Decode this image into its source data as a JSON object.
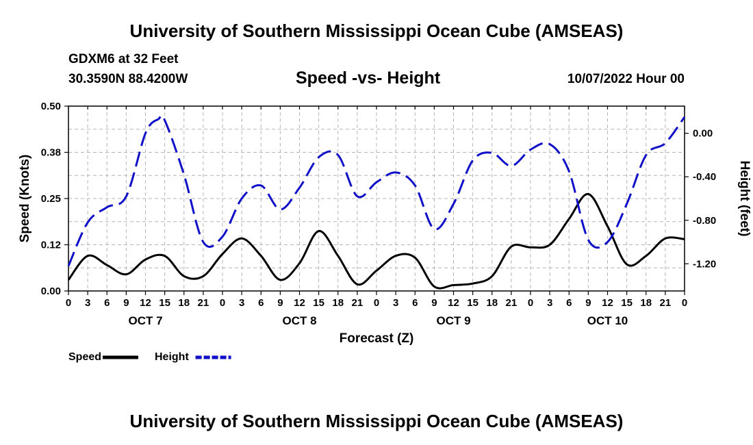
{
  "header": {
    "title": "University of Southern Mississippi Ocean Cube (AMSEAS)",
    "station": "GDXM6 at 32 Feet",
    "coords": "30.3590N  88.4200W",
    "subtitle": "Speed -vs- Height",
    "datetime": "10/07/2022 Hour 00"
  },
  "footer": {
    "title": "University of Southern Mississippi Ocean Cube (AMSEAS)"
  },
  "chart_data": {
    "type": "line",
    "title": "Speed -vs- Height",
    "xlabel": "Forecast (Z)",
    "ylabel": "Speed (Knots)",
    "y2label": "Height (feet)",
    "xlim": [
      0,
      96
    ],
    "ylim": [
      0,
      0.5
    ],
    "y2lim": [
      -1.45,
      0.25
    ],
    "yticks": [
      0,
      0.125,
      0.25,
      0.375,
      0.5
    ],
    "ytick_labels": [
      "0.00",
      "0.12",
      "0.25",
      "0.38",
      "0.50"
    ],
    "y2ticks": [
      -1.2,
      -0.8,
      -0.4,
      0.0
    ],
    "y2tick_labels": [
      "-1.20",
      "-0.80",
      "-0.40",
      "0.00"
    ],
    "xtick_labels": [
      "0",
      "3",
      "6",
      "9",
      "12",
      "15",
      "18",
      "21",
      "0",
      "3",
      "6",
      "9",
      "12",
      "15",
      "18",
      "21",
      "0",
      "3",
      "6",
      "9",
      "12",
      "15",
      "18",
      "21",
      "0",
      "3",
      "6",
      "9",
      "12",
      "15",
      "18",
      "21",
      "0"
    ],
    "day_labels": [
      {
        "label": "OCT 7",
        "hour": 12
      },
      {
        "label": "OCT 8",
        "hour": 36
      },
      {
        "label": "OCT 9",
        "hour": 60
      },
      {
        "label": "OCT 10",
        "hour": 84
      }
    ],
    "grid": true,
    "legend_position": "bottom-left",
    "series": [
      {
        "name": "Speed",
        "axis": "left",
        "color": "#000000",
        "dash": false,
        "x": [
          0,
          3,
          6,
          9,
          12,
          15,
          18,
          21,
          24,
          27,
          30,
          33,
          36,
          39,
          42,
          45,
          48,
          51,
          54,
          57,
          60,
          63,
          66,
          69,
          72,
          75,
          78,
          81,
          84,
          87,
          90,
          93,
          96
        ],
        "values": [
          0.03,
          0.095,
          0.07,
          0.045,
          0.085,
          0.095,
          0.04,
          0.04,
          0.1,
          0.142,
          0.095,
          0.03,
          0.075,
          0.162,
          0.095,
          0.018,
          0.055,
          0.095,
          0.09,
          0.012,
          0.016,
          0.02,
          0.04,
          0.12,
          0.118,
          0.125,
          0.195,
          0.262,
          0.175,
          0.072,
          0.095,
          0.142,
          0.14
        ]
      },
      {
        "name": "Height",
        "axis": "right",
        "color": "#1010c8",
        "dash": true,
        "x": [
          0,
          3,
          6,
          9,
          12,
          14,
          15,
          18,
          21,
          24,
          27,
          30,
          33,
          36,
          39,
          42,
          45,
          48,
          51,
          54,
          57,
          60,
          63,
          66,
          69,
          72,
          75,
          78,
          81,
          84,
          87,
          90,
          93,
          96
        ],
        "values": [
          -1.22,
          -0.82,
          -0.68,
          -0.58,
          0.0,
          0.13,
          0.12,
          -0.38,
          -1.0,
          -0.95,
          -0.6,
          -0.48,
          -0.7,
          -0.5,
          -0.22,
          -0.2,
          -0.58,
          -0.45,
          -0.36,
          -0.48,
          -0.88,
          -0.65,
          -0.25,
          -0.18,
          -0.3,
          -0.15,
          -0.1,
          -0.35,
          -0.98,
          -1.0,
          -0.65,
          -0.2,
          -0.09,
          0.15
        ]
      }
    ]
  }
}
